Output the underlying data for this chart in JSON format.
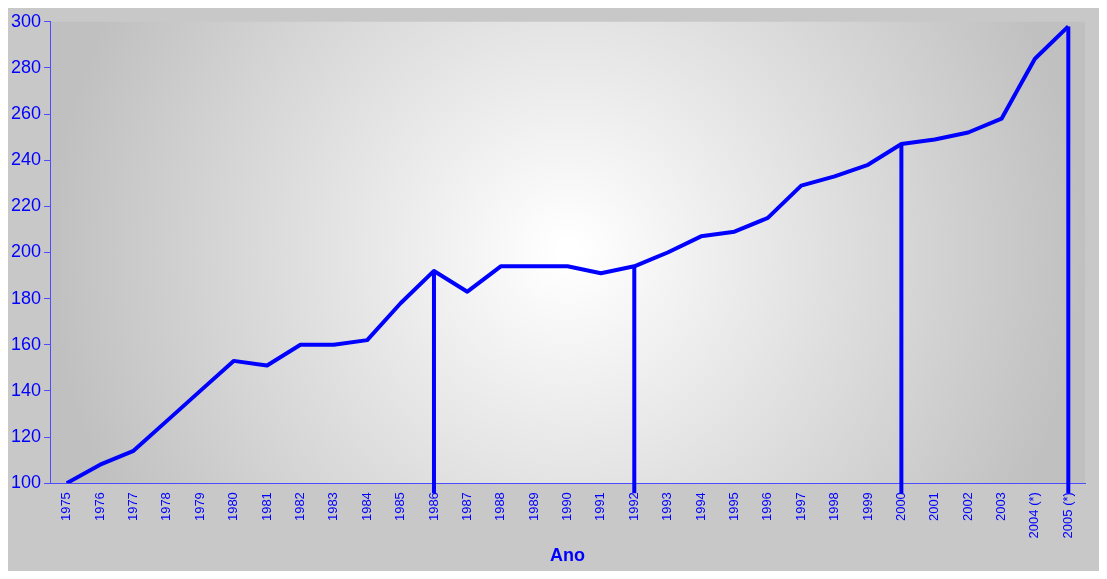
{
  "chart_data": {
    "type": "line",
    "xlabel": "Ano",
    "categories": [
      "1975",
      "1976",
      "1977",
      "1978",
      "1979",
      "1980",
      "1981",
      "1982",
      "1983",
      "1984",
      "1985",
      "1986",
      "1987",
      "1988",
      "1989",
      "1990",
      "1991",
      "1992",
      "1993",
      "1994",
      "1995",
      "1996",
      "1997",
      "1998",
      "1999",
      "2000",
      "2001",
      "2002",
      "2003",
      "2004 (*)",
      "2005 (*)"
    ],
    "series": [
      {
        "color": "#0000ff",
        "values": [
          100,
          108,
          114,
          127,
          140,
          153,
          151,
          160,
          160,
          162,
          178,
          192,
          183,
          194,
          194,
          194,
          191,
          194,
          200,
          207,
          209,
          215,
          229,
          233,
          238,
          247,
          249,
          252,
          258,
          284,
          298
        ]
      }
    ],
    "ylim": [
      100,
      300
    ],
    "yticks": [
      100,
      120,
      140,
      160,
      180,
      200,
      220,
      240,
      260,
      280,
      300
    ],
    "grid": false,
    "legend": false,
    "marker": "none",
    "line_style": "solid",
    "ref_lines": [
      {
        "axis": "x",
        "value": "1986",
        "color": "#0000ff"
      },
      {
        "axis": "x",
        "value": "1992",
        "color": "#0000ff"
      },
      {
        "axis": "x",
        "value": "2000",
        "color": "#0000ff"
      },
      {
        "axis": "x",
        "value": "2005 (*)",
        "color": "#0000ff"
      }
    ]
  }
}
